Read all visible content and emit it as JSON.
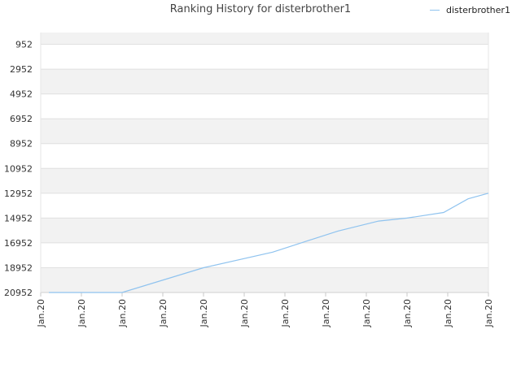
{
  "chart_data": {
    "type": "line",
    "title": "Ranking History for disterbrother1",
    "legend_position": "top-right",
    "grid": true,
    "y_inverted": true,
    "ylim": [
      20952,
      0
    ],
    "y_ticks": [
      "952",
      "2952",
      "4952",
      "6952",
      "8952",
      "10952",
      "12952",
      "14952",
      "16952",
      "18952",
      "20952"
    ],
    "x_ticks": [
      "Jan.20",
      "Jan.20",
      "Jan.20",
      "Jan.20",
      "Jan.20",
      "Jan.20",
      "Jan.20",
      "Jan.20",
      "Jan.20",
      "Jan.20",
      "Jan.20",
      "Jan.20"
    ],
    "series": [
      {
        "name": "disterbrother1",
        "color": "#8fc3ef",
        "points": [
          {
            "x": 0.2,
            "y": 20952
          },
          {
            "x": 2.0,
            "y": 20952
          },
          {
            "x": 4.0,
            "y": 18952
          },
          {
            "x": 5.7,
            "y": 17700
          },
          {
            "x": 6.4,
            "y": 16952
          },
          {
            "x": 7.3,
            "y": 16000
          },
          {
            "x": 8.3,
            "y": 15200
          },
          {
            "x": 9.0,
            "y": 14952
          },
          {
            "x": 9.9,
            "y": 14500
          },
          {
            "x": 10.5,
            "y": 13400
          },
          {
            "x": 11.0,
            "y": 12952
          }
        ]
      }
    ]
  }
}
